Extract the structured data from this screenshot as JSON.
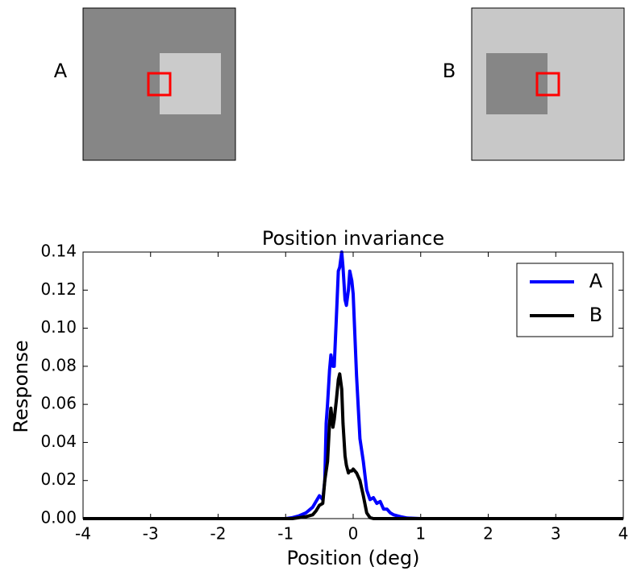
{
  "stimuli": [
    {
      "label": "A",
      "background_color": "#868686",
      "square_color": "#cbcbcb",
      "outline_color": "#ff0000"
    },
    {
      "label": "B",
      "background_color": "#c8c8c8",
      "square_color": "#868686",
      "outline_color": "#ff0000"
    }
  ],
  "chart_data": {
    "type": "line",
    "title": "Position invariance",
    "xlabel": "Position (deg)",
    "ylabel": "Response",
    "xlim": [
      -4,
      4
    ],
    "ylim": [
      0,
      0.14
    ],
    "xticks": [
      -4,
      -3,
      -2,
      -1,
      0,
      1,
      2,
      3,
      4
    ],
    "xtick_labels": [
      "-4",
      "-3",
      "-2",
      "-1",
      "0",
      "1",
      "2",
      "3",
      "4"
    ],
    "yticks": [
      0,
      0.02,
      0.04,
      0.06,
      0.08,
      0.1,
      0.12,
      0.14
    ],
    "ytick_labels": [
      "0.00",
      "0.02",
      "0.04",
      "0.06",
      "0.08",
      "0.10",
      "0.12",
      "0.14"
    ],
    "grid": false,
    "legend_position": "top-right",
    "series": [
      {
        "name": "A",
        "color": "#0000ff",
        "x": [
          -4,
          -1.0,
          -0.9,
          -0.8,
          -0.7,
          -0.6,
          -0.55,
          -0.5,
          -0.45,
          -0.42,
          -0.4,
          -0.38,
          -0.35,
          -0.33,
          -0.3,
          -0.28,
          -0.25,
          -0.22,
          -0.2,
          -0.17,
          -0.15,
          -0.12,
          -0.1,
          -0.07,
          -0.05,
          -0.02,
          0.0,
          0.05,
          0.1,
          0.15,
          0.2,
          0.25,
          0.3,
          0.35,
          0.4,
          0.45,
          0.5,
          0.55,
          0.6,
          0.7,
          0.8,
          1.0,
          4
        ],
        "y": [
          0,
          0,
          0.0005,
          0.0015,
          0.003,
          0.006,
          0.009,
          0.012,
          0.01,
          0.02,
          0.05,
          0.06,
          0.078,
          0.086,
          0.08,
          0.08,
          0.105,
          0.13,
          0.132,
          0.14,
          0.132,
          0.115,
          0.112,
          0.12,
          0.13,
          0.125,
          0.118,
          0.075,
          0.042,
          0.03,
          0.015,
          0.01,
          0.011,
          0.008,
          0.009,
          0.005,
          0.005,
          0.003,
          0.002,
          0.001,
          0.0003,
          0,
          0
        ]
      },
      {
        "name": "B",
        "color": "#000000",
        "x": [
          -4,
          -0.9,
          -0.8,
          -0.7,
          -0.6,
          -0.55,
          -0.5,
          -0.45,
          -0.42,
          -0.4,
          -0.38,
          -0.35,
          -0.33,
          -0.3,
          -0.28,
          -0.25,
          -0.22,
          -0.2,
          -0.17,
          -0.15,
          -0.12,
          -0.1,
          -0.07,
          -0.05,
          -0.02,
          0.0,
          0.05,
          0.1,
          0.15,
          0.2,
          0.25,
          0.3,
          4
        ],
        "y": [
          0,
          0,
          0.0005,
          0.001,
          0.002,
          0.004,
          0.007,
          0.008,
          0.02,
          0.025,
          0.03,
          0.05,
          0.058,
          0.048,
          0.052,
          0.062,
          0.073,
          0.076,
          0.068,
          0.05,
          0.033,
          0.028,
          0.024,
          0.025,
          0.025,
          0.026,
          0.024,
          0.02,
          0.012,
          0.003,
          0.0005,
          0,
          0
        ]
      }
    ]
  }
}
